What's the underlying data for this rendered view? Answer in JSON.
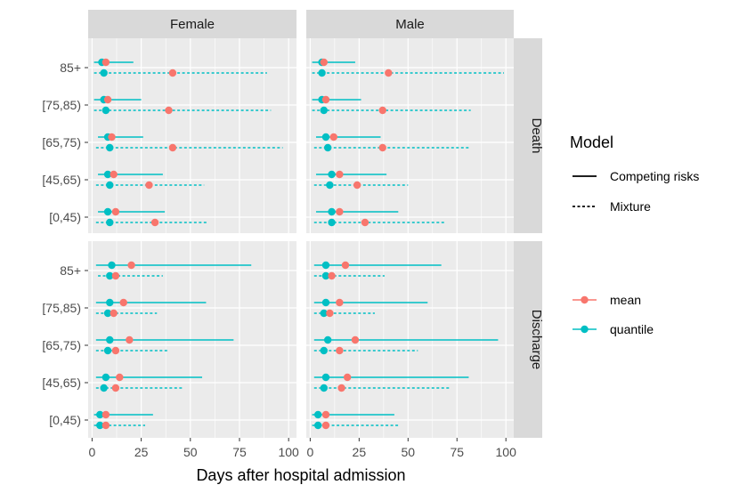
{
  "chart_data": {
    "type": "interval-dot",
    "xlabel": "Days after hospital admission",
    "xlim": [
      -2,
      104
    ],
    "x_ticks": [
      0,
      25,
      50,
      75,
      100
    ],
    "x_tick_labels": [
      "0",
      "25",
      "50",
      "75",
      "100"
    ],
    "columns": [
      "Female",
      "Male"
    ],
    "rows": [
      "Death",
      "Discharge"
    ],
    "age_groups": [
      "85+",
      "[75,85)",
      "[65,75)",
      "[45,65)",
      "[0,45)"
    ],
    "legend_model": {
      "title": "Model",
      "items": [
        {
          "label": "Competing risks",
          "style": "solid"
        },
        {
          "label": "Mixture",
          "style": "dashed"
        }
      ]
    },
    "legend_stat": {
      "items": [
        {
          "label": "mean",
          "color": "#F8766D"
        },
        {
          "label": "quantile",
          "color": "#00BFC4"
        }
      ]
    },
    "colors": {
      "mean": "#F8766D",
      "quantile": "#00BFC4",
      "panel": "#EBEBEB",
      "strip": "#D9D9D9",
      "grid": "#FFFFFF"
    },
    "panels": [
      {
        "row": "Death",
        "col": "Female",
        "data": [
          {
            "age": "85+",
            "cr": {
              "lo": 1,
              "hi": 21,
              "median": 5,
              "mean": 7
            },
            "mix": {
              "lo": 1,
              "hi": 89,
              "median": 6,
              "mean": 41
            }
          },
          {
            "age": "[75,85)",
            "cr": {
              "lo": 1,
              "hi": 25,
              "median": 6,
              "mean": 8
            },
            "mix": {
              "lo": 1,
              "hi": 91,
              "median": 7,
              "mean": 39
            }
          },
          {
            "age": "[65,75)",
            "cr": {
              "lo": 3,
              "hi": 26,
              "median": 8,
              "mean": 10
            },
            "mix": {
              "lo": 2,
              "hi": 97,
              "median": 9,
              "mean": 41
            }
          },
          {
            "age": "[45,65)",
            "cr": {
              "lo": 3,
              "hi": 36,
              "median": 8,
              "mean": 11
            },
            "mix": {
              "lo": 2,
              "hi": 57,
              "median": 9,
              "mean": 29
            }
          },
          {
            "age": "[0,45)",
            "cr": {
              "lo": 3,
              "hi": 37,
              "median": 8,
              "mean": 12
            },
            "mix": {
              "lo": 2,
              "hi": 59,
              "median": 9,
              "mean": 32
            }
          }
        ]
      },
      {
        "row": "Death",
        "col": "Male",
        "data": [
          {
            "age": "85+",
            "cr": {
              "lo": 1,
              "hi": 23,
              "median": 6,
              "mean": 7
            },
            "mix": {
              "lo": 1,
              "hi": 99,
              "median": 6,
              "mean": 40
            }
          },
          {
            "age": "[75,85)",
            "cr": {
              "lo": 1,
              "hi": 26,
              "median": 6,
              "mean": 8
            },
            "mix": {
              "lo": 1,
              "hi": 82,
              "median": 7,
              "mean": 37
            }
          },
          {
            "age": "[65,75)",
            "cr": {
              "lo": 3,
              "hi": 36,
              "median": 8,
              "mean": 12
            },
            "mix": {
              "lo": 2,
              "hi": 82,
              "median": 9,
              "mean": 37
            }
          },
          {
            "age": "[45,65)",
            "cr": {
              "lo": 3,
              "hi": 39,
              "median": 11,
              "mean": 15
            },
            "mix": {
              "lo": 2,
              "hi": 50,
              "median": 10,
              "mean": 24
            }
          },
          {
            "age": "[0,45)",
            "cr": {
              "lo": 3,
              "hi": 45,
              "median": 11,
              "mean": 15
            },
            "mix": {
              "lo": 2,
              "hi": 69,
              "median": 11,
              "mean": 28
            }
          }
        ]
      },
      {
        "row": "Discharge",
        "col": "Female",
        "data": [
          {
            "age": "85+",
            "cr": {
              "lo": 2,
              "hi": 81,
              "median": 10,
              "mean": 20
            },
            "mix": {
              "lo": 3,
              "hi": 36,
              "median": 9,
              "mean": 12
            }
          },
          {
            "age": "[75,85)",
            "cr": {
              "lo": 2,
              "hi": 58,
              "median": 9,
              "mean": 16
            },
            "mix": {
              "lo": 2,
              "hi": 33,
              "median": 8,
              "mean": 11
            }
          },
          {
            "age": "[65,75)",
            "cr": {
              "lo": 2,
              "hi": 72,
              "median": 9,
              "mean": 19
            },
            "mix": {
              "lo": 2,
              "hi": 39,
              "median": 8,
              "mean": 12
            }
          },
          {
            "age": "[45,65)",
            "cr": {
              "lo": 2,
              "hi": 56,
              "median": 7,
              "mean": 14
            },
            "mix": {
              "lo": 2,
              "hi": 46,
              "median": 6,
              "mean": 12
            }
          },
          {
            "age": "[0,45)",
            "cr": {
              "lo": 1,
              "hi": 31,
              "median": 4,
              "mean": 7
            },
            "mix": {
              "lo": 1,
              "hi": 27,
              "median": 4,
              "mean": 7
            }
          }
        ]
      },
      {
        "row": "Discharge",
        "col": "Male",
        "data": [
          {
            "age": "85+",
            "cr": {
              "lo": 2,
              "hi": 67,
              "median": 8,
              "mean": 18
            },
            "mix": {
              "lo": 2,
              "hi": 38,
              "median": 8,
              "mean": 11
            }
          },
          {
            "age": "[75,85)",
            "cr": {
              "lo": 2,
              "hi": 60,
              "median": 8,
              "mean": 15
            },
            "mix": {
              "lo": 2,
              "hi": 33,
              "median": 7,
              "mean": 10
            }
          },
          {
            "age": "[65,75)",
            "cr": {
              "lo": 2,
              "hi": 96,
              "median": 9,
              "mean": 23
            },
            "mix": {
              "lo": 2,
              "hi": 55,
              "median": 7,
              "mean": 15
            }
          },
          {
            "age": "[45,65)",
            "cr": {
              "lo": 2,
              "hi": 81,
              "median": 8,
              "mean": 19
            },
            "mix": {
              "lo": 2,
              "hi": 72,
              "median": 7,
              "mean": 16
            }
          },
          {
            "age": "[0,45)",
            "cr": {
              "lo": 1,
              "hi": 43,
              "median": 4,
              "mean": 8
            },
            "mix": {
              "lo": 1,
              "hi": 45,
              "median": 4,
              "mean": 8
            }
          }
        ]
      }
    ]
  }
}
